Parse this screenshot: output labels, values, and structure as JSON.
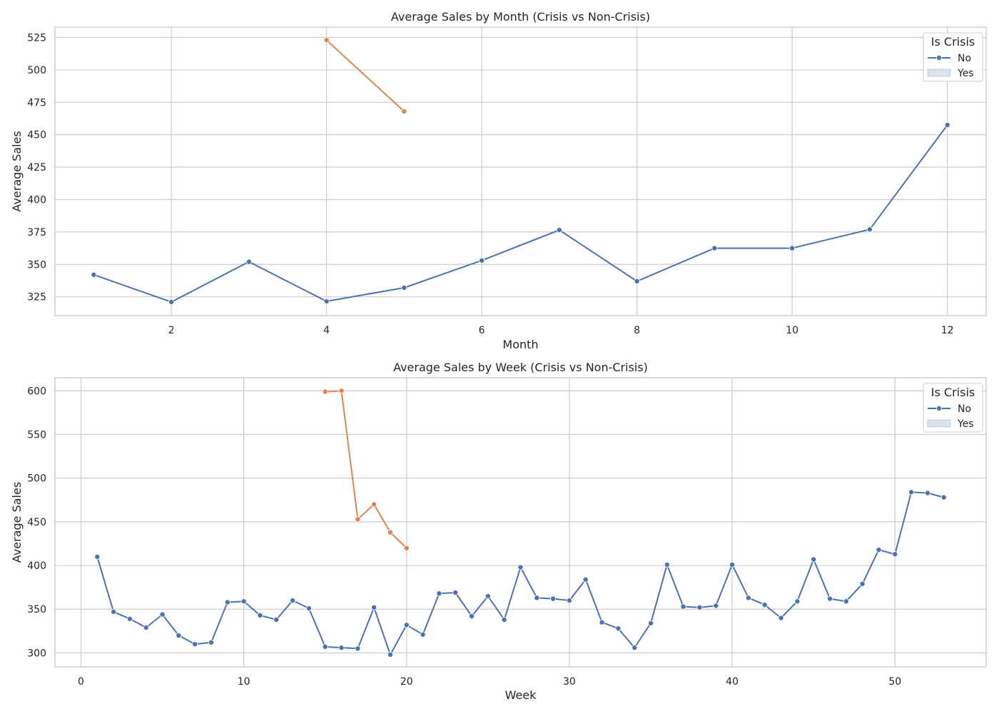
{
  "chart_data": [
    {
      "type": "line",
      "title": "Average Sales by Month (Crisis vs Non-Crisis)",
      "xlabel": "Month",
      "ylabel": "Average Sales",
      "xlim": [
        0.5,
        12.5
      ],
      "ylim": [
        310.5,
        533
      ],
      "xticks": [
        2,
        4,
        6,
        8,
        10,
        12
      ],
      "yticks": [
        325,
        350,
        375,
        400,
        425,
        450,
        475,
        500,
        525
      ],
      "grid": true,
      "legend": {
        "title": "Is Crisis",
        "placement": "top-right",
        "entries": [
          {
            "label": "No",
            "style": "line",
            "color": "#4c72b0"
          },
          {
            "label": "Yes",
            "style": "band",
            "color": "#4c72b0"
          }
        ]
      },
      "series": [
        {
          "color": "#4c72b0",
          "x": [
            1,
            2,
            3,
            4,
            5,
            6,
            7,
            8,
            9,
            10,
            11,
            12
          ],
          "y": [
            342,
            321,
            352,
            321.5,
            332,
            353,
            376.5,
            337,
            362.5,
            362.5,
            377,
            457.5
          ]
        },
        {
          "color": "#dd8452",
          "x": [
            4,
            5
          ],
          "y": [
            523,
            468
          ]
        }
      ]
    },
    {
      "type": "line",
      "title": "Average Sales by Week (Crisis vs Non-Crisis)",
      "xlabel": "Week",
      "ylabel": "Average Sales",
      "xlim": [
        -1.6,
        55.6
      ],
      "ylim": [
        284,
        615
      ],
      "xticks": [
        0,
        10,
        20,
        30,
        40,
        50
      ],
      "yticks": [
        300,
        350,
        400,
        450,
        500,
        550,
        600
      ],
      "grid": true,
      "legend": {
        "title": "Is Crisis",
        "placement": "top-right",
        "entries": [
          {
            "label": "No",
            "style": "line",
            "color": "#4c72b0"
          },
          {
            "label": "Yes",
            "style": "band",
            "color": "#4c72b0"
          }
        ]
      },
      "series": [
        {
          "color": "#4c72b0",
          "x": [
            1,
            2,
            3,
            4,
            5,
            6,
            7,
            8,
            9,
            10,
            11,
            12,
            13,
            14,
            15,
            16,
            17,
            18,
            19,
            20,
            21,
            22,
            23,
            24,
            25,
            26,
            27,
            28,
            29,
            30,
            31,
            32,
            33,
            34,
            35,
            36,
            37,
            38,
            39,
            40,
            41,
            42,
            43,
            44,
            45,
            46,
            47,
            48,
            49,
            50,
            51,
            52,
            53
          ],
          "y": [
            410,
            347,
            339,
            329,
            344,
            320,
            310,
            312,
            358,
            359,
            343,
            338,
            360,
            351,
            307,
            306,
            305,
            352,
            298,
            332,
            321,
            368,
            369,
            342,
            365,
            338,
            398,
            363,
            362,
            360,
            384,
            335,
            328,
            306,
            334,
            401,
            353,
            352,
            354,
            401,
            363,
            355,
            340,
            359,
            407,
            362,
            359,
            379,
            418,
            413,
            484,
            483,
            478
          ]
        },
        {
          "color": "#dd8452",
          "x": [
            15,
            16,
            17,
            18,
            19,
            20
          ],
          "y": [
            599,
            600,
            453,
            470,
            438,
            420
          ]
        }
      ]
    }
  ]
}
